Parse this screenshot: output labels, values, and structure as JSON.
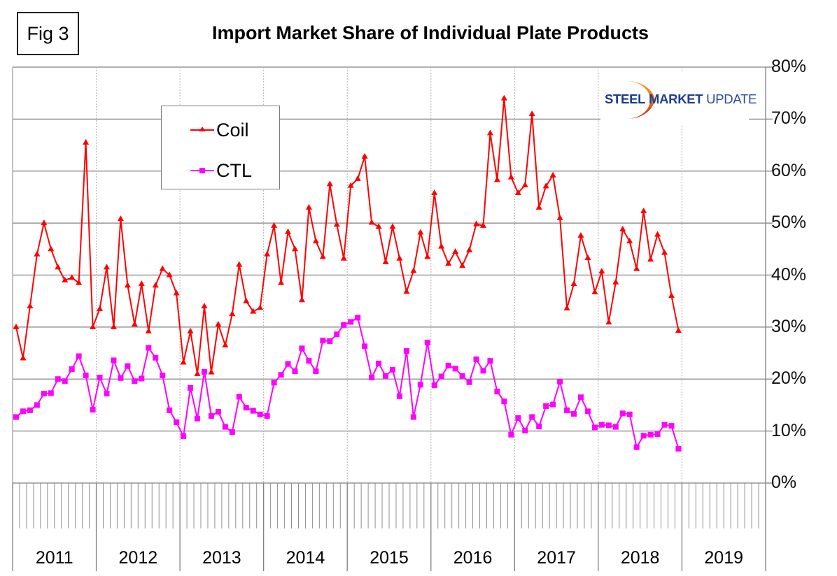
{
  "figure_label": "Fig 3",
  "logo": {
    "word1": "STEEL",
    "word2": "MARKET",
    "word3": "UPDATE",
    "colors": {
      "text": "#1b3f8f",
      "arc_top": "#f5a623",
      "arc_bottom": "#d0261e"
    }
  },
  "chart_data": {
    "type": "line",
    "title": "Import Market Share of Individual Plate Products",
    "xlabel": "",
    "ylabel": "",
    "y_axis_side": "right",
    "ylim": [
      0,
      80
    ],
    "y_ticks": [
      "0%",
      "10%",
      "20%",
      "30%",
      "40%",
      "50%",
      "60%",
      "70%",
      "80%"
    ],
    "y_tick_values": [
      0,
      10,
      20,
      30,
      40,
      50,
      60,
      70,
      80
    ],
    "x_axis": {
      "unit": "month",
      "years": [
        "2011",
        "2012",
        "2013",
        "2014",
        "2015",
        "2016",
        "2017",
        "2018",
        "2019"
      ],
      "months_per_year": 12,
      "start": "2011-01",
      "end_axis": "2019-12"
    },
    "grid": {
      "horizontal": true,
      "vertical_year_dotted": true
    },
    "legend": {
      "placement": "upper-left-inside",
      "entries": [
        "Coil",
        "CTL"
      ]
    },
    "series": [
      {
        "name": "Coil",
        "color": "#ff0000",
        "marker": "triangle",
        "unit": "%",
        "values": [
          30,
          24,
          34,
          44,
          50,
          45,
          41.5,
          39,
          39.5,
          38.5,
          65.5,
          30,
          33.5,
          41.5,
          30,
          50.8,
          38,
          30.5,
          38.3,
          29.2,
          38,
          41.2,
          40,
          36.5,
          23.2,
          29.2,
          21,
          34,
          21.3,
          30.5,
          26.5,
          32.5,
          42,
          35,
          33,
          33.7,
          44,
          49.5,
          38.5,
          48.3,
          45,
          35.2,
          53,
          46.5,
          43.5,
          57.5,
          49.7,
          43.2,
          57.2,
          58.5,
          62.8,
          50.1,
          49.3,
          42.5,
          49.3,
          43.2,
          36.8,
          40.8,
          48.2,
          43.5,
          55.8,
          45.5,
          42.2,
          44.5,
          41.8,
          44.8,
          49.8,
          49.5,
          67.3,
          58.3,
          74,
          58.8,
          55.8,
          57.3,
          71,
          53,
          57.1,
          59.2,
          51,
          33.6,
          38.3,
          47.6,
          43.3,
          36.7,
          40.7,
          30.9,
          38.6,
          48.8,
          46.5,
          41.2,
          52.3,
          43,
          47.8,
          44.3,
          36,
          29.3
        ]
      },
      {
        "name": "CTL",
        "color": "#ff00ff",
        "marker": "square",
        "unit": "%",
        "values": [
          12.7,
          13.8,
          14,
          15,
          17.2,
          17.3,
          20,
          19.6,
          21.9,
          24.4,
          20.7,
          14.1,
          20.3,
          17.2,
          23.6,
          20.2,
          22.5,
          19.6,
          20.1,
          26,
          24.1,
          20.7,
          14,
          11.7,
          9,
          18.3,
          12.4,
          21.4,
          12.9,
          13.7,
          10.8,
          9.8,
          16.6,
          14.5,
          13.9,
          13.2,
          12.9,
          19.3,
          20.8,
          22.9,
          21.5,
          25.9,
          23.5,
          21.5,
          27.4,
          27.3,
          28.6,
          30.4,
          31,
          31.8,
          26.3,
          20.3,
          23,
          20.6,
          21.8,
          16.7,
          25.4,
          12.7,
          18.9,
          27,
          18.8,
          20.5,
          22.6,
          22,
          20.6,
          19.4,
          23.8,
          21.6,
          23.5,
          17.6,
          15.7,
          9.3,
          12.5,
          10.1,
          12.7,
          10.9,
          14.8,
          15.1,
          19.5,
          14,
          13.3,
          16.5,
          13.8,
          10.7,
          11.2,
          11.1,
          10.8,
          13.4,
          13.2,
          6.9,
          9.1,
          9.3,
          9.4,
          11.2,
          11,
          6.6
        ]
      }
    ]
  }
}
